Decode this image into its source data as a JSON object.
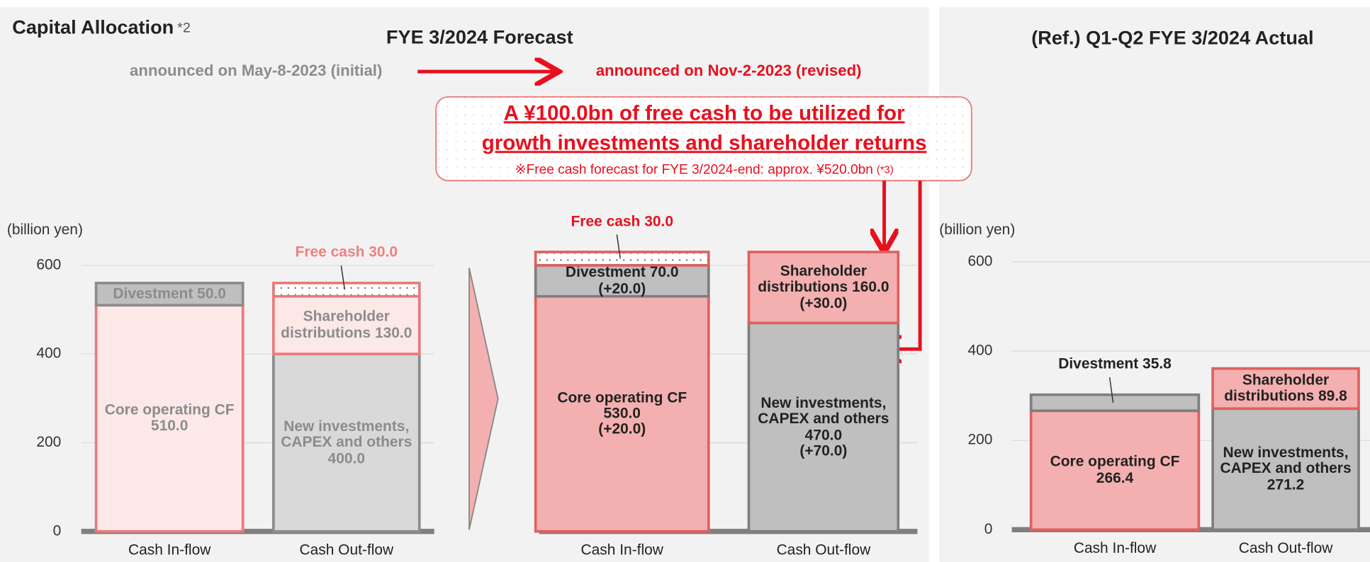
{
  "header": {
    "title": "Capital Allocation",
    "title_note": "*2"
  },
  "forecast_title": "FYE 3/2024 Forecast",
  "announcements": {
    "initial": "announced on May-8-2023 (initial)",
    "revised": "announced on Nov-2-2023 (revised)"
  },
  "callout": {
    "line1": "A ¥100.0bn of free cash to be utilized for",
    "line2": "growth investments and shareholder returns",
    "note": "※Free cash forecast for FYE 3/2024-end: approx. ¥520.0bn",
    "note_ref": "(*3)"
  },
  "actual_title": "(Ref.) Q1-Q2 FYE 3/2024 Actual",
  "chart_data": [
    {
      "type": "bar",
      "stacked": true,
      "ylabel": "(billion yen)",
      "categories": [
        "Cash In-flow",
        "Cash Out-flow"
      ],
      "ylim": [
        0,
        600
      ],
      "yticks": [
        0,
        200,
        400,
        600
      ],
      "tick_labels": true,
      "grid": true,
      "label_color": "#8c8c8c",
      "series": [
        {
          "name": "Core operating CF",
          "color": "#fde8e8",
          "edgecolor": "#e87b7b",
          "values": [
            510,
            null
          ],
          "value_labels": [
            "510.0",
            null
          ]
        },
        {
          "name": "Divestment",
          "color": "#bfbfbf",
          "edgecolor": "#8c8c8c",
          "values": [
            50,
            null
          ],
          "value_labels": [
            "50.0",
            null
          ]
        },
        {
          "name": "New investments, CAPEX and others",
          "color": "#d9d9d9",
          "edgecolor": "#8c8c8c",
          "values": [
            null,
            400
          ],
          "value_labels": [
            null,
            "400.0"
          ]
        },
        {
          "name": "Shareholder distributions",
          "color": "#fde8e8",
          "edgecolor": "#e87b7b",
          "values": [
            null,
            130
          ],
          "value_labels": [
            null,
            "130.0"
          ]
        },
        {
          "name": "Free cash",
          "color": "dots",
          "edgecolor": "#e87b7b",
          "label_color": "#ef8080",
          "values": [
            null,
            30
          ],
          "value_labels": [
            null,
            "30.0"
          ]
        }
      ]
    },
    {
      "type": "bar",
      "stacked": true,
      "categories": [
        "Cash In-flow",
        "Cash Out-flow"
      ],
      "ylim": [
        0,
        600
      ],
      "yticks": [
        0,
        200,
        400,
        600
      ],
      "tick_labels": false,
      "grid": true,
      "label_color": "#222222",
      "series": [
        {
          "name": "Core operating CF",
          "color": "#f4b0b0",
          "edgecolor": "#e06060",
          "values": [
            530,
            null
          ],
          "value_labels": [
            "530.0",
            null
          ],
          "change_labels": [
            "(+20.0)",
            null
          ]
        },
        {
          "name": "Divestment",
          "color": "#bfbfbf",
          "edgecolor": "#7f7f7f",
          "values": [
            70,
            null
          ],
          "value_labels": [
            "70.0",
            null
          ],
          "change_labels": [
            "(+20.0)",
            null
          ]
        },
        {
          "name": "New investments, CAPEX and others",
          "color": "#bfbfbf",
          "edgecolor": "#7f7f7f",
          "values": [
            null,
            470
          ],
          "value_labels": [
            null,
            "470.0"
          ],
          "change_labels": [
            null,
            "(+70.0)"
          ]
        },
        {
          "name": "Shareholder distributions",
          "color": "#f4b0b0",
          "edgecolor": "#e06060",
          "values": [
            null,
            160
          ],
          "value_labels": [
            null,
            "160.0"
          ],
          "change_labels": [
            null,
            "(+30.0)"
          ]
        },
        {
          "name": "Free cash",
          "color": "dots",
          "edgecolor": "#e06060",
          "label_color": "#e8101e",
          "values": [
            30,
            null
          ],
          "value_labels": [
            "30.0",
            null
          ]
        }
      ]
    },
    {
      "type": "bar",
      "stacked": true,
      "ylabel": "(billion yen)",
      "categories": [
        "Cash In-flow",
        "Cash Out-flow"
      ],
      "ylim": [
        0,
        600
      ],
      "yticks": [
        0,
        200,
        400,
        600
      ],
      "tick_labels": true,
      "grid": true,
      "label_color": "#222222",
      "series": [
        {
          "name": "Core operating CF",
          "color": "#f4b0b0",
          "edgecolor": "#e06060",
          "values": [
            266.4,
            null
          ],
          "value_labels": [
            "266.4",
            null
          ]
        },
        {
          "name": "Divestment",
          "color": "#bfbfbf",
          "edgecolor": "#7f7f7f",
          "values": [
            35.8,
            null
          ],
          "value_labels": [
            "35.8",
            null
          ]
        },
        {
          "name": "New investments, CAPEX and others",
          "color": "#bfbfbf",
          "edgecolor": "#7f7f7f",
          "values": [
            null,
            271.2
          ],
          "value_labels": [
            null,
            "271.2"
          ]
        },
        {
          "name": "Shareholder distributions",
          "color": "#f4b0b0",
          "edgecolor": "#e06060",
          "values": [
            null,
            89.8
          ],
          "value_labels": [
            null,
            "89.8"
          ]
        }
      ]
    }
  ]
}
